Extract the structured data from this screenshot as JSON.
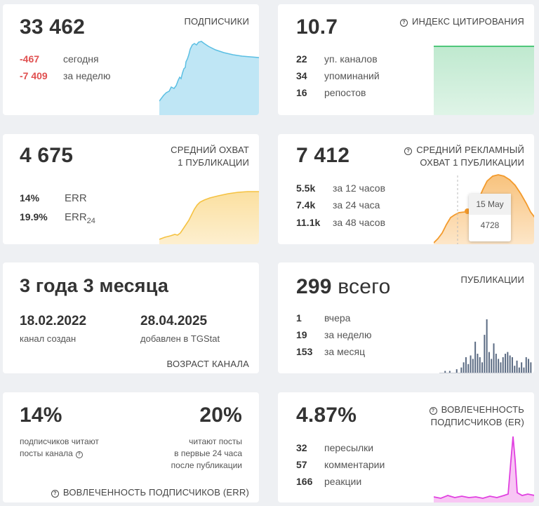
{
  "subscribers": {
    "value": "33 462",
    "header": "ПОДПИСЧИКИ",
    "today_value": "-467",
    "today_label": "сегодня",
    "week_value": "-7 409",
    "week_label": "за неделю",
    "color": "#5bbfe3"
  },
  "citation": {
    "value": "10.7",
    "header": "ИНДЕКС ЦИТИРОВАНИЯ",
    "rows": [
      {
        "n": "22",
        "label": "уп. каналов"
      },
      {
        "n": "34",
        "label": "упоминаний"
      },
      {
        "n": "16",
        "label": "репостов"
      }
    ],
    "color": "#4ec77a"
  },
  "reach": {
    "value": "4 675",
    "header_line1": "СРЕДНИЙ ОХВАТ",
    "header_line2": "1 ПУБЛИКАЦИИ",
    "rows": [
      {
        "n": "14%",
        "label": "ERR"
      },
      {
        "n": "19.9%",
        "label": "ERR",
        "sub": "24"
      }
    ],
    "color": "#f5c242"
  },
  "ad_reach": {
    "value": "7 412",
    "header_line1": "СРЕДНИЙ РЕКЛАМНЫЙ",
    "header_line2": "ОХВАТ 1 ПУБЛИКАЦИИ",
    "rows": [
      {
        "n": "5.5k",
        "label": "за 12 часов"
      },
      {
        "n": "7.4k",
        "label": "за 24 часа"
      },
      {
        "n": "11.1k",
        "label": "за 48 часов"
      }
    ],
    "tooltip_date": "15 May",
    "tooltip_value": "4728",
    "color": "#f39a2b"
  },
  "age": {
    "value": "3 года 3 месяца",
    "created_date": "18.02.2022",
    "created_label": "канал создан",
    "added_date": "28.04.2025",
    "added_label": "добавлен в TGStat",
    "footer": "ВОЗРАСТ КАНАЛА"
  },
  "publications": {
    "value": "299",
    "value_suffix": "всего",
    "header": "ПУБЛИКАЦИИ",
    "rows": [
      {
        "n": "1",
        "label": "вчера"
      },
      {
        "n": "19",
        "label": "за неделю"
      },
      {
        "n": "153",
        "label": "за месяц"
      }
    ],
    "bars": [
      0,
      0,
      1,
      0,
      1,
      0,
      0,
      2,
      0,
      3,
      6,
      9,
      5,
      10,
      8,
      18,
      11,
      9,
      6,
      22,
      31,
      12,
      8,
      17,
      11,
      8,
      6,
      9,
      11,
      12,
      10,
      9,
      4,
      7,
      3,
      6,
      3,
      9,
      8,
      6
    ],
    "color": "#5a6a82"
  },
  "err": {
    "value_left": "14%",
    "value_right": "20%",
    "left_line1": "подписчиков читают",
    "left_line2": "посты канала",
    "right_line1": "читают посты",
    "right_line2": "в первые 24 часа",
    "right_line3": "после публикации",
    "footer": "ВОВЛЕЧЕННОСТЬ ПОДПИСЧИКОВ (ERR)"
  },
  "er": {
    "value": "4.87%",
    "header_line1": "ВОВЛЕЧЕННОСТЬ",
    "header_line2": "ПОДПИСЧИКОВ (ER)",
    "rows": [
      {
        "n": "32",
        "label": "пересылки"
      },
      {
        "n": "57",
        "label": "комментарии"
      },
      {
        "n": "166",
        "label": "реакции"
      }
    ],
    "color": "#e040e0"
  }
}
